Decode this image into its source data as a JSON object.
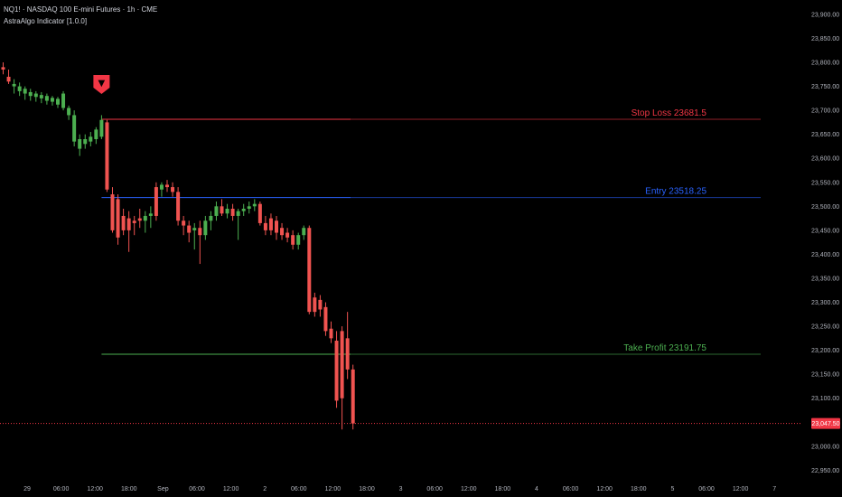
{
  "header": {
    "symbol_line": "NQ1! · NASDAQ 100 E-mini Futures · 1h · CME",
    "indicator_line": "AstraAlgo Indicator [1.0.0]"
  },
  "signal": {
    "marker": "▼",
    "color": "#f23645"
  },
  "levels": [
    {
      "name": "stop-loss",
      "label": "Stop Loss 23681.5",
      "value": 23681.5,
      "color": "#f23645"
    },
    {
      "name": "entry",
      "label": "Entry 23518.25",
      "value": 23518.25,
      "color": "#2962ff"
    },
    {
      "name": "take-profit",
      "label": "Take Profit 23191.75",
      "value": 23191.75,
      "color": "#4caf50"
    }
  ],
  "current_price": {
    "label": "23,047.50",
    "value": 23047.5,
    "color": "#f23645"
  },
  "chart_data": {
    "type": "candlestick",
    "title": "NQ1! · NASDAQ 100 E-mini Futures · 1h · CME",
    "ylim": [
      22930,
      23930
    ],
    "y_ticks": [
      "23,900.00",
      "23,850.00",
      "23,800.00",
      "23,750.00",
      "23,700.00",
      "23,650.00",
      "23,600.00",
      "23,550.00",
      "23,500.00",
      "23,450.00",
      "23,400.00",
      "23,350.00",
      "23,300.00",
      "23,250.00",
      "23,200.00",
      "23,150.00",
      "23,100.00",
      "23,050.00",
      "23,000.00",
      "22,950.00"
    ],
    "x_ticks": [
      "29",
      "06:00",
      "12:00",
      "18:00",
      "Sep",
      "06:00",
      "12:00",
      "2",
      "06:00",
      "12:00",
      "18:00",
      "3",
      "06:00",
      "12:00",
      "18:00",
      "4",
      "06:00",
      "12:00",
      "18:00",
      "5",
      "06:00",
      "12:00",
      "7"
    ],
    "up_color": "#4caf50",
    "down_color": "#f05350",
    "grid": false,
    "candles": [
      {
        "o": 23790,
        "h": 23800,
        "l": 23775,
        "c": 23785
      },
      {
        "o": 23770,
        "h": 23785,
        "l": 23755,
        "c": 23760
      },
      {
        "o": 23750,
        "h": 23765,
        "l": 23735,
        "c": 23755
      },
      {
        "o": 23740,
        "h": 23758,
        "l": 23730,
        "c": 23750
      },
      {
        "o": 23735,
        "h": 23750,
        "l": 23722,
        "c": 23745
      },
      {
        "o": 23730,
        "h": 23745,
        "l": 23720,
        "c": 23738
      },
      {
        "o": 23728,
        "h": 23740,
        "l": 23718,
        "c": 23735
      },
      {
        "o": 23725,
        "h": 23738,
        "l": 23715,
        "c": 23732
      },
      {
        "o": 23720,
        "h": 23735,
        "l": 23712,
        "c": 23730
      },
      {
        "o": 23718,
        "h": 23730,
        "l": 23710,
        "c": 23726
      },
      {
        "o": 23712,
        "h": 23728,
        "l": 23705,
        "c": 23724
      },
      {
        "o": 23705,
        "h": 23740,
        "l": 23700,
        "c": 23735
      },
      {
        "o": 23690,
        "h": 23710,
        "l": 23680,
        "c": 23705
      },
      {
        "o": 23635,
        "h": 23700,
        "l": 23625,
        "c": 23690
      },
      {
        "o": 23620,
        "h": 23650,
        "l": 23605,
        "c": 23640
      },
      {
        "o": 23630,
        "h": 23650,
        "l": 23620,
        "c": 23640
      },
      {
        "o": 23635,
        "h": 23655,
        "l": 23625,
        "c": 23645
      },
      {
        "o": 23640,
        "h": 23665,
        "l": 23630,
        "c": 23660
      },
      {
        "o": 23645,
        "h": 23690,
        "l": 23640,
        "c": 23680
      },
      {
        "o": 23675,
        "h": 23680,
        "l": 23530,
        "c": 23535
      },
      {
        "o": 23525,
        "h": 23540,
        "l": 23445,
        "c": 23450
      },
      {
        "o": 23515,
        "h": 23525,
        "l": 23420,
        "c": 23435
      },
      {
        "o": 23480,
        "h": 23495,
        "l": 23440,
        "c": 23450
      },
      {
        "o": 23475,
        "h": 23490,
        "l": 23405,
        "c": 23450
      },
      {
        "o": 23470,
        "h": 23480,
        "l": 23440,
        "c": 23465
      },
      {
        "o": 23475,
        "h": 23495,
        "l": 23455,
        "c": 23470
      },
      {
        "o": 23470,
        "h": 23490,
        "l": 23445,
        "c": 23480
      },
      {
        "o": 23480,
        "h": 23500,
        "l": 23455,
        "c": 23485
      },
      {
        "o": 23540,
        "h": 23550,
        "l": 23470,
        "c": 23480
      },
      {
        "o": 23535,
        "h": 23550,
        "l": 23520,
        "c": 23545
      },
      {
        "o": 23545,
        "h": 23555,
        "l": 23530,
        "c": 23540
      },
      {
        "o": 23540,
        "h": 23550,
        "l": 23520,
        "c": 23530
      },
      {
        "o": 23530,
        "h": 23540,
        "l": 23460,
        "c": 23470
      },
      {
        "o": 23470,
        "h": 23480,
        "l": 23440,
        "c": 23460
      },
      {
        "o": 23460,
        "h": 23470,
        "l": 23425,
        "c": 23445
      },
      {
        "o": 23450,
        "h": 23465,
        "l": 23410,
        "c": 23455
      },
      {
        "o": 23455,
        "h": 23470,
        "l": 23380,
        "c": 23440
      },
      {
        "o": 23440,
        "h": 23480,
        "l": 23430,
        "c": 23470
      },
      {
        "o": 23470,
        "h": 23490,
        "l": 23450,
        "c": 23480
      },
      {
        "o": 23480,
        "h": 23510,
        "l": 23470,
        "c": 23500
      },
      {
        "o": 23500,
        "h": 23515,
        "l": 23480,
        "c": 23485
      },
      {
        "o": 23485,
        "h": 23505,
        "l": 23475,
        "c": 23495
      },
      {
        "o": 23495,
        "h": 23505,
        "l": 23470,
        "c": 23480
      },
      {
        "o": 23480,
        "h": 23495,
        "l": 23430,
        "c": 23490
      },
      {
        "o": 23490,
        "h": 23505,
        "l": 23480,
        "c": 23495
      },
      {
        "o": 23495,
        "h": 23510,
        "l": 23485,
        "c": 23500
      },
      {
        "o": 23500,
        "h": 23515,
        "l": 23490,
        "c": 23505
      },
      {
        "o": 23505,
        "h": 23510,
        "l": 23460,
        "c": 23465
      },
      {
        "o": 23465,
        "h": 23480,
        "l": 23440,
        "c": 23450
      },
      {
        "o": 23475,
        "h": 23485,
        "l": 23440,
        "c": 23450
      },
      {
        "o": 23470,
        "h": 23480,
        "l": 23430,
        "c": 23445
      },
      {
        "o": 23455,
        "h": 23465,
        "l": 23430,
        "c": 23440
      },
      {
        "o": 23445,
        "h": 23455,
        "l": 23425,
        "c": 23435
      },
      {
        "o": 23440,
        "h": 23450,
        "l": 23410,
        "c": 23420
      },
      {
        "o": 23420,
        "h": 23445,
        "l": 23410,
        "c": 23440
      },
      {
        "o": 23440,
        "h": 23460,
        "l": 23430,
        "c": 23455
      },
      {
        "o": 23455,
        "h": 23460,
        "l": 23275,
        "c": 23280
      },
      {
        "o": 23310,
        "h": 23320,
        "l": 23270,
        "c": 23280
      },
      {
        "o": 23305,
        "h": 23315,
        "l": 23270,
        "c": 23285
      },
      {
        "o": 23290,
        "h": 23300,
        "l": 23230,
        "c": 23240
      },
      {
        "o": 23245,
        "h": 23260,
        "l": 23215,
        "c": 23225
      },
      {
        "o": 23220,
        "h": 23240,
        "l": 23080,
        "c": 23095
      },
      {
        "o": 23240,
        "h": 23250,
        "l": 23035,
        "c": 23100
      },
      {
        "o": 23225,
        "h": 23280,
        "l": 23140,
        "c": 23160
      },
      {
        "o": 23160,
        "h": 23170,
        "l": 23035,
        "c": 23047.5
      }
    ]
  }
}
